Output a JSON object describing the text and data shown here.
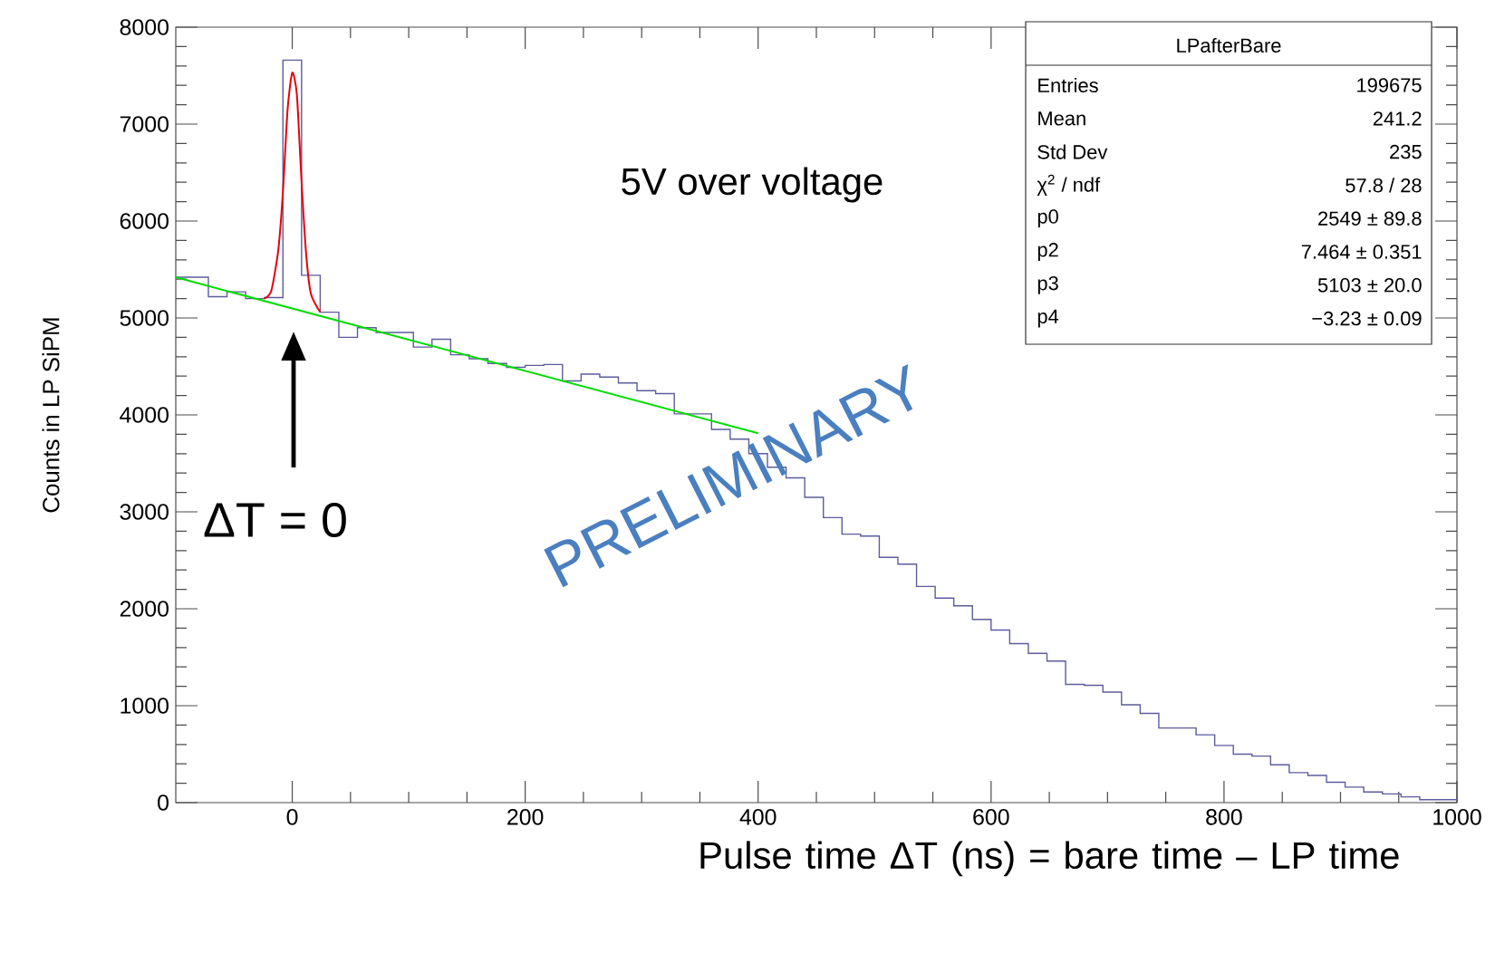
{
  "chart_data": {
    "type": "histogram",
    "xlabel": "Pulse time ΔT (ns) = bare time – LP time",
    "ylabel": "Counts in LP SiPM",
    "xlim": [
      -100,
      1000
    ],
    "ylim": [
      0,
      8000
    ],
    "xticks": [
      0,
      200,
      400,
      600,
      800,
      1000
    ],
    "yticks": [
      0,
      1000,
      2000,
      3000,
      4000,
      5000,
      6000,
      7000,
      8000
    ],
    "series": [
      {
        "color": "#5c5c9e",
        "bins": [
          -100,
          -88,
          -72,
          -56,
          -40,
          -24,
          -8,
          8,
          24,
          40,
          56,
          72,
          88,
          104,
          120,
          136,
          152,
          168,
          184,
          200,
          216,
          232,
          248,
          264,
          280,
          296,
          312,
          328,
          344,
          360,
          376,
          392,
          408,
          424,
          440,
          456,
          472,
          488,
          504,
          520,
          536,
          552,
          568,
          584,
          600,
          616,
          632,
          648,
          664,
          680,
          696,
          712,
          728,
          744,
          760,
          776,
          792,
          808,
          824,
          840,
          856,
          872,
          888,
          904,
          920,
          936,
          952,
          968,
          984,
          1000
        ],
        "values": [
          5420,
          5420,
          5220,
          5270,
          5200,
          5210,
          7660,
          5440,
          5060,
          4800,
          4900,
          4850,
          4850,
          4700,
          4780,
          4620,
          4580,
          4530,
          4490,
          4510,
          4520,
          4350,
          4420,
          4390,
          4330,
          4250,
          4220,
          4010,
          4010,
          3850,
          3750,
          3600,
          3460,
          3350,
          3150,
          2940,
          2770,
          2750,
          2530,
          2460,
          2230,
          2110,
          2030,
          1890,
          1780,
          1640,
          1540,
          1460,
          1220,
          1210,
          1140,
          1010,
          920,
          770,
          770,
          700,
          590,
          500,
          480,
          390,
          310,
          280,
          210,
          160,
          110,
          90,
          60,
          30,
          30
        ]
      },
      {
        "type": "line",
        "color": "#e8000b",
        "x": [
          -24,
          -18,
          -12,
          -8,
          -4,
          0,
          4,
          8,
          12,
          16,
          24
        ],
        "values": [
          5200,
          5280,
          5700,
          6300,
          7150,
          7530,
          7300,
          6400,
          5650,
          5250,
          5060
        ]
      },
      {
        "type": "line",
        "color": "#00dd00",
        "x": [
          -100,
          400
        ],
        "values": [
          5420,
          3810
        ]
      }
    ],
    "annotations": [
      "5V over voltage",
      "ΔT = 0",
      "PRELIMINARY",
      "LPafterBare",
      "Entries",
      "199675",
      "Mean",
      "241.2",
      "Std Dev",
      "235",
      "χ$^{2}$ / ndf",
      "57.8 / 28",
      "p0",
      "2549 ± 89.8",
      "p2",
      "7.464 ± 0.351",
      "p3",
      "5103 ± 20.0",
      "p4",
      "−3.23 ± 0.09"
    ]
  }
}
